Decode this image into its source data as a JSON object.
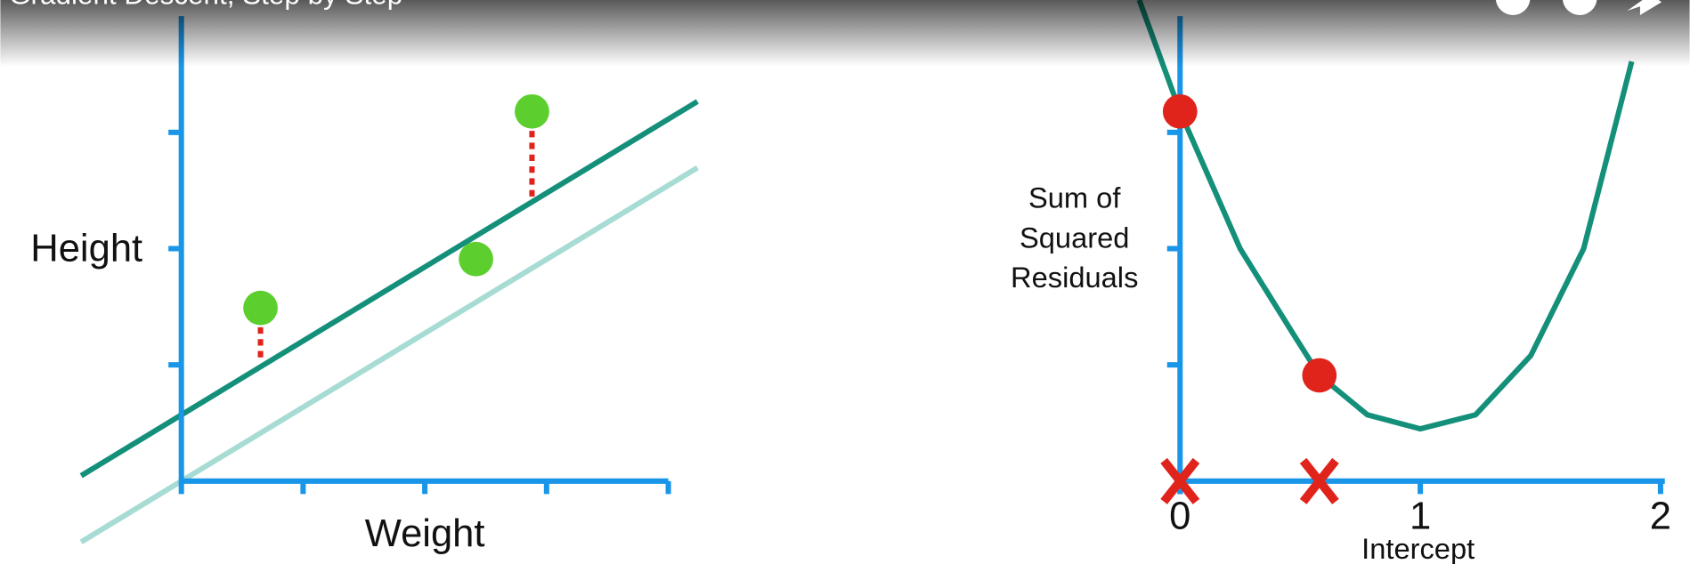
{
  "video_title": "Gradient Descent, Step by Step",
  "chart_data": [
    {
      "type": "scatter",
      "x_label": "Weight",
      "y_label": "Height",
      "x": [
        0.65,
        2.42,
        2.88
      ],
      "y": [
        1.49,
        1.91,
        3.18
      ],
      "color": "#5ccf2e",
      "xlim": [
        0,
        4
      ],
      "ylim": [
        0,
        4
      ],
      "lines": [
        {
          "intercept": 0.57,
          "slope": 0.636,
          "color": "#138f7a"
        },
        {
          "intercept": 0,
          "slope": 0.636,
          "color": "#a6dcd3"
        }
      ],
      "residual_color": "#e0231b"
    },
    {
      "type": "line",
      "x_label": "Intercept",
      "y_label": [
        "Sum of",
        "Squared",
        "Residuals"
      ],
      "x": [
        -0.17,
        0,
        0.25,
        0.47,
        0.58,
        0.78,
        1.0,
        1.23,
        1.46,
        1.68,
        1.88
      ],
      "values": [
        4.14,
        3.18,
        2.0,
        1.27,
        0.91,
        0.57,
        0.45,
        0.57,
        1.08,
        2.0,
        3.61
      ],
      "color": "#138f7a",
      "xlim": [
        0,
        2
      ],
      "xticks": [
        0,
        1,
        2
      ],
      "ylim": [
        0,
        4
      ],
      "points": {
        "x": [
          0,
          0.58
        ],
        "y": [
          3.18,
          0.91
        ],
        "color": "#e0231b"
      }
    }
  ]
}
